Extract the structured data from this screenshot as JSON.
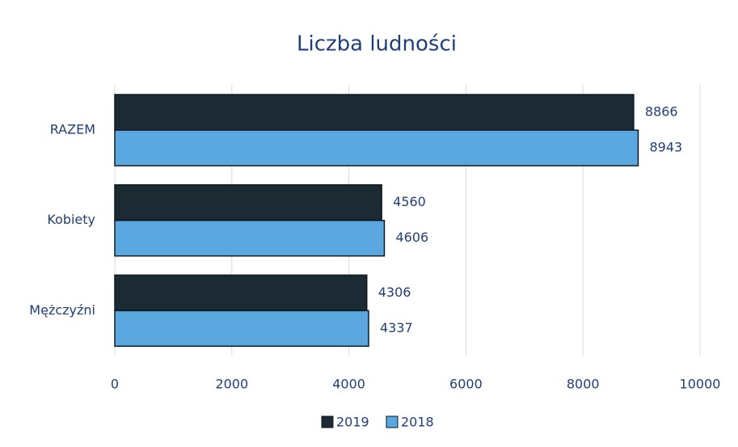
{
  "chart_data": {
    "type": "bar",
    "orientation": "horizontal",
    "title": "Liczba ludności",
    "categories": [
      "RAZEM",
      "Kobiety",
      "Mężczyźni"
    ],
    "series": [
      {
        "name": "2019",
        "color": "#1b2a33",
        "values": [
          8866,
          4560,
          4306
        ]
      },
      {
        "name": "2018",
        "color": "#5ba8e0",
        "values": [
          8943,
          4606,
          4337
        ]
      }
    ],
    "xlim": [
      0,
      10000
    ],
    "xticks": [
      0,
      2000,
      4000,
      6000,
      8000,
      10000
    ],
    "grid": true,
    "legend": "bottom"
  }
}
